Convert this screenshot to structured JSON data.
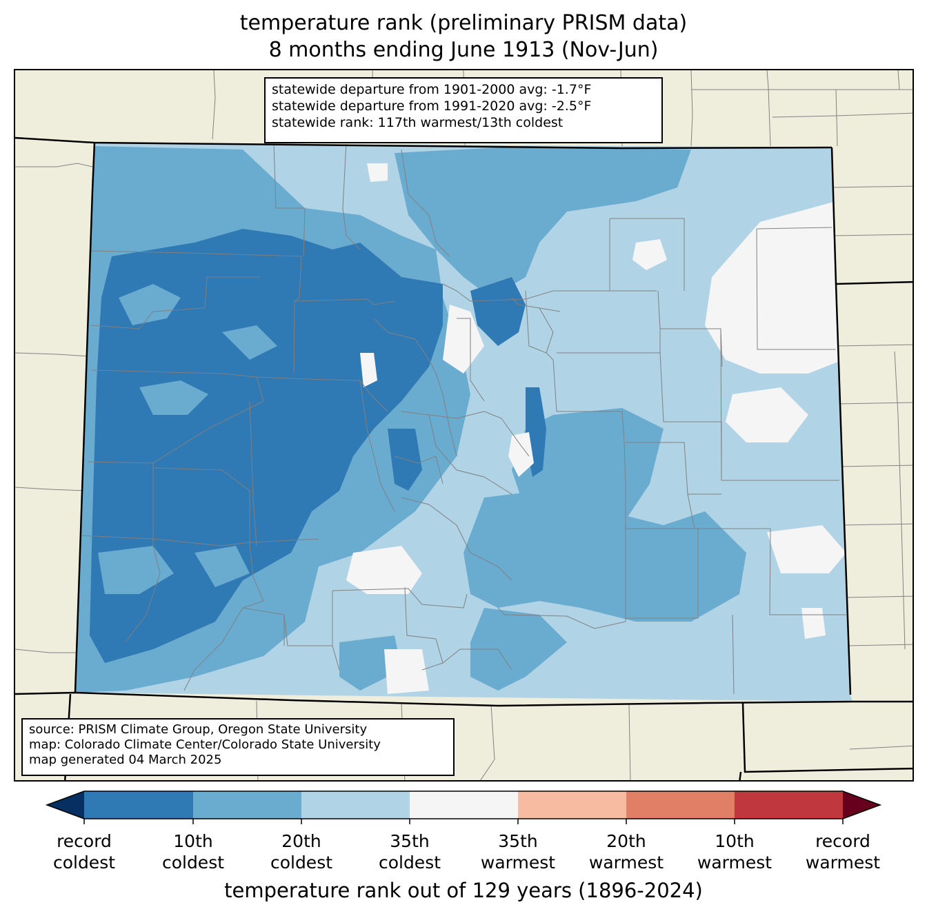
{
  "title_line1": "temperature rank (preliminary PRISM data)",
  "title_line2": "8 months ending June 1913 (Nov-Jun)",
  "stats": {
    "line1": "statewide departure from 1901-2000 avg: -1.7°F",
    "line2": "statewide departure from 1991-2020 avg: -2.5°F",
    "line3": "statewide rank: 117th warmest/13th coldest"
  },
  "source": {
    "line1": "source: PRISM Climate Group, Oregon State University",
    "line2": "map: Colorado Climate Center/Colorado State University",
    "line3": "map generated 04 March 2025"
  },
  "colorbar": {
    "title": "temperature rank out of 129 years (1896-2024)",
    "colors": [
      "#053061",
      "#2f79b5",
      "#6aabd0",
      "#b0d3e6",
      "#f5f5f5",
      "#f7bba1",
      "#e17e66",
      "#c0383e",
      "#67001f"
    ],
    "ticks": [
      {
        "line1": "record",
        "line2": "coldest"
      },
      {
        "line1": "10th",
        "line2": "coldest"
      },
      {
        "line1": "20th",
        "line2": "coldest"
      },
      {
        "line1": "35th",
        "line2": "coldest"
      },
      {
        "line1": "35th",
        "line2": "warmest"
      },
      {
        "line1": "20th",
        "line2": "warmest"
      },
      {
        "line1": "10th",
        "line2": "warmest"
      },
      {
        "line1": "record",
        "line2": "warmest"
      }
    ]
  },
  "map_colors": {
    "background": "#efeedd",
    "record_coldest": "#053061",
    "coldest_10": "#2f79b5",
    "coldest_20": "#6aabd0",
    "coldest_35": "#b0d3e6",
    "near_normal": "#f5f5f5",
    "county_lines": "#808080",
    "state_lines": "#000000"
  }
}
